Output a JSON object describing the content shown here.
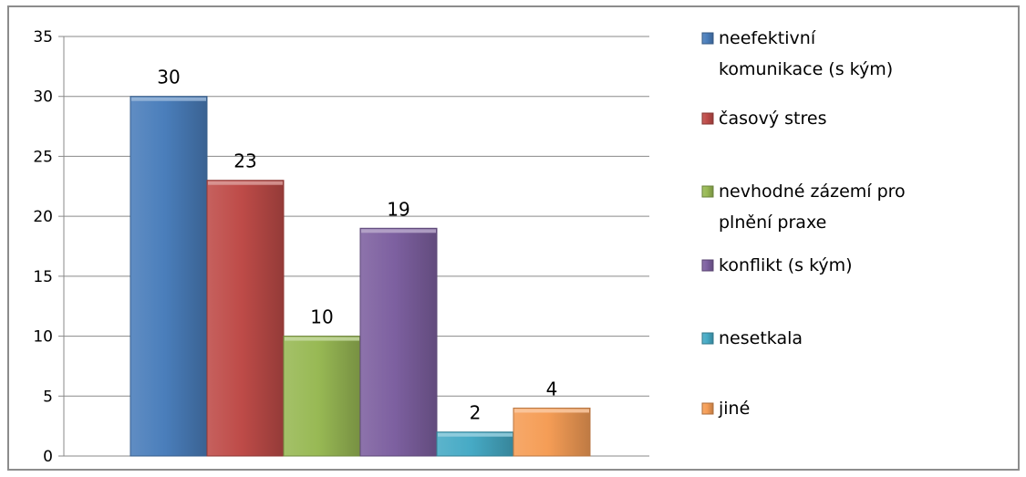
{
  "chart_data": {
    "type": "bar",
    "categories": [
      "neefektivní komunikace (s kým)",
      "časový stres",
      "nevhodné zázemí pro plnění praxe",
      "konflikt (s kým)",
      "nesetkala",
      "jiné"
    ],
    "series": [
      {
        "values": [
          30,
          23,
          10,
          19,
          2,
          4
        ]
      }
    ],
    "ylim": [
      0,
      35
    ],
    "yticks": [
      0,
      5,
      10,
      15,
      20,
      25,
      30,
      35
    ],
    "grid": true,
    "legend_position": "right",
    "legend": [
      {
        "lines": [
          "neefektivní",
          "komunikace (s kým)"
        ],
        "color": "#4a7ebb"
      },
      {
        "lines": [
          "časový stres"
        ],
        "color": "#be4b48"
      },
      {
        "lines": [
          "nevhodné zázemí pro",
          "plnění praxe"
        ],
        "color": "#98b954"
      },
      {
        "lines": [
          "konflikt (s kým)"
        ],
        "color": "#7d60a0"
      },
      {
        "lines": [
          "nesetkala"
        ],
        "color": "#46aac5"
      },
      {
        "lines": [
          "jiné"
        ],
        "color": "#f59d56"
      }
    ],
    "colors": [
      "#4a7ebb",
      "#be4b48",
      "#98b954",
      "#7d60a0",
      "#46aac5",
      "#f59d56"
    ]
  }
}
